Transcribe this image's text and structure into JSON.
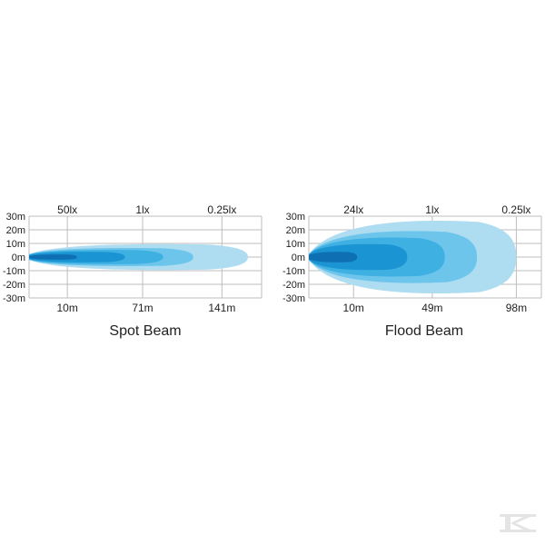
{
  "colors": {
    "grid": "#bdbdbd",
    "beam_levels": [
      "#aedcf0",
      "#6ec5ec",
      "#3fb0e2",
      "#1a94d2",
      "#0f6fb3"
    ],
    "logo": "#e4e4e4"
  },
  "logo_icon": "k-logo-icon",
  "chart_data": [
    {
      "type": "area",
      "title": "Spot Beam",
      "y_ticks": [
        "30m",
        "20m",
        "10m",
        "0m",
        "-10m",
        "-20m",
        "-30m"
      ],
      "ylim": [
        -30,
        30
      ],
      "xlim": [
        0,
        170
      ],
      "grid": true,
      "lux_labels": [
        {
          "label": "50lx",
          "x": 28
        },
        {
          "label": "1lx",
          "x": 83
        },
        {
          "label": "0.25lx",
          "x": 141
        }
      ],
      "distance_labels": [
        {
          "label": "10m",
          "x": 28
        },
        {
          "label": "71m",
          "x": 83
        },
        {
          "label": "141m",
          "x": 141
        }
      ],
      "contours": [
        {
          "reach": 160,
          "half_width": 10
        },
        {
          "reach": 120,
          "half_width": 7
        },
        {
          "reach": 98,
          "half_width": 5.5
        },
        {
          "reach": 70,
          "half_width": 4
        },
        {
          "reach": 35,
          "half_width": 2
        }
      ]
    },
    {
      "type": "area",
      "title": "Flood Beam",
      "y_ticks": [
        "30m",
        "20m",
        "10m",
        "0m",
        "-10m",
        "-20m",
        "-30m"
      ],
      "ylim": [
        -30,
        30
      ],
      "xlim": [
        0,
        130
      ],
      "grid": true,
      "lux_labels": [
        {
          "label": "24lx",
          "x": 25
        },
        {
          "label": "1lx",
          "x": 69
        },
        {
          "label": "0.25lx",
          "x": 116
        }
      ],
      "distance_labels": [
        {
          "label": "10m",
          "x": 25
        },
        {
          "label": "49m",
          "x": 69
        },
        {
          "label": "98m",
          "x": 116
        }
      ],
      "contours": [
        {
          "reach": 116,
          "half_width": 28
        },
        {
          "reach": 94,
          "half_width": 20
        },
        {
          "reach": 76,
          "half_width": 15
        },
        {
          "reach": 55,
          "half_width": 10
        },
        {
          "reach": 27,
          "half_width": 4
        }
      ]
    }
  ]
}
